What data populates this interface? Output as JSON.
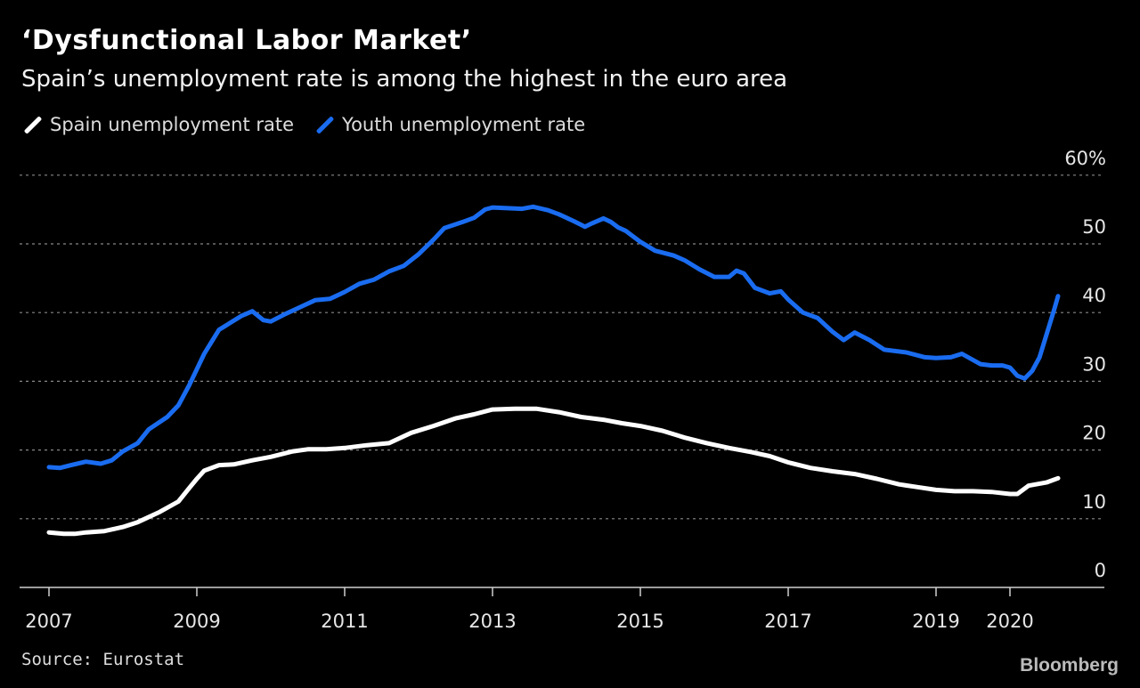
{
  "header": {
    "title": "‘Dysfunctional Labor Market’",
    "subtitle": "Spain’s unemployment rate is among the highest in the euro area"
  },
  "footer": {
    "source": "Source: Eurostat",
    "brand": "Bloomberg"
  },
  "chart_data": {
    "type": "line",
    "title": "‘Dysfunctional Labor Market’",
    "subtitle": "Spain’s unemployment rate is among the highest in the euro area",
    "xlabel": "",
    "ylabel": "",
    "ylim": [
      0,
      60
    ],
    "xlim": [
      2007,
      2021
    ],
    "y_ticks": [
      "0",
      "10",
      "20",
      "30",
      "40",
      "50",
      "60%"
    ],
    "y_tick_values": [
      0,
      10,
      20,
      30,
      40,
      50,
      60
    ],
    "x_ticks": [
      "2007",
      "2009",
      "2011",
      "2013",
      "2015",
      "2017",
      "2019",
      "2020"
    ],
    "x_tick_values": [
      2007,
      2009,
      2011,
      2013,
      2015,
      2017,
      2019,
      2020
    ],
    "grid": true,
    "legend_position": "top-left",
    "colors": {
      "background": "#000000",
      "grid": "#888888",
      "spain": "#ffffff",
      "youth": "#1a6cf0"
    },
    "series": [
      {
        "name": "Spain unemployment rate",
        "color": "#ffffff",
        "x": [
          2007.0,
          2007.2,
          2007.35,
          2007.5,
          2007.75,
          2008.0,
          2008.2,
          2008.5,
          2008.75,
          2008.9,
          2009.0,
          2009.1,
          2009.3,
          2009.5,
          2009.75,
          2010.0,
          2010.3,
          2010.5,
          2010.75,
          2011.0,
          2011.3,
          2011.6,
          2011.9,
          2012.2,
          2012.5,
          2012.75,
          2013.0,
          2013.3,
          2013.6,
          2013.9,
          2014.2,
          2014.5,
          2014.75,
          2015.0,
          2015.3,
          2015.6,
          2015.9,
          2016.2,
          2016.5,
          2016.75,
          2017.0,
          2017.3,
          2017.6,
          2017.9,
          2018.2,
          2018.5,
          2018.75,
          2019.0,
          2019.25,
          2019.5,
          2019.75,
          2020.0,
          2020.1,
          2020.25,
          2020.5,
          2020.65
        ],
        "y": [
          8.0,
          7.8,
          7.8,
          8.0,
          8.2,
          8.8,
          9.5,
          11.0,
          12.5,
          14.5,
          15.8,
          17.0,
          17.8,
          17.9,
          18.5,
          19.0,
          19.8,
          20.1,
          20.1,
          20.3,
          20.7,
          21.0,
          22.5,
          23.5,
          24.6,
          25.2,
          25.9,
          26.0,
          26.0,
          25.5,
          24.8,
          24.4,
          23.9,
          23.5,
          22.8,
          21.8,
          21.0,
          20.3,
          19.7,
          19.1,
          18.2,
          17.4,
          16.9,
          16.5,
          15.8,
          15.0,
          14.6,
          14.2,
          14.0,
          14.0,
          13.9,
          13.6,
          13.6,
          14.8,
          15.3,
          15.9
        ]
      },
      {
        "name": "Youth unemployment rate",
        "color": "#1a6cf0",
        "x": [
          2007.0,
          2007.15,
          2007.3,
          2007.5,
          2007.7,
          2007.85,
          2008.0,
          2008.2,
          2008.35,
          2008.6,
          2008.75,
          2008.9,
          2009.1,
          2009.3,
          2009.45,
          2009.6,
          2009.75,
          2009.9,
          2010.0,
          2010.2,
          2010.4,
          2010.6,
          2010.8,
          2011.0,
          2011.2,
          2011.4,
          2011.6,
          2011.8,
          2012.0,
          2012.2,
          2012.35,
          2012.6,
          2012.75,
          2012.9,
          2013.0,
          2013.2,
          2013.4,
          2013.55,
          2013.75,
          2013.9,
          2014.1,
          2014.25,
          2014.35,
          2014.5,
          2014.6,
          2014.7,
          2014.8,
          2015.0,
          2015.2,
          2015.45,
          2015.6,
          2015.8,
          2016.0,
          2016.2,
          2016.3,
          2016.4,
          2016.55,
          2016.75,
          2016.9,
          2017.0,
          2017.2,
          2017.4,
          2017.6,
          2017.75,
          2017.9,
          2018.1,
          2018.3,
          2018.6,
          2018.85,
          2019.0,
          2019.2,
          2019.35,
          2019.6,
          2019.75,
          2019.9,
          2020.0,
          2020.1,
          2020.2,
          2020.3,
          2020.4,
          2020.5,
          2020.6,
          2020.65
        ],
        "y": [
          17.5,
          17.4,
          17.8,
          18.3,
          18.0,
          18.5,
          19.8,
          21.0,
          23.0,
          24.8,
          26.5,
          29.5,
          34.0,
          37.5,
          38.5,
          39.5,
          40.2,
          38.9,
          38.7,
          39.8,
          40.8,
          41.8,
          42.0,
          43.0,
          44.2,
          44.8,
          46.0,
          46.8,
          48.5,
          50.6,
          52.3,
          53.2,
          53.8,
          55.0,
          55.3,
          55.2,
          55.1,
          55.4,
          54.9,
          54.3,
          53.3,
          52.5,
          53.0,
          53.7,
          53.2,
          52.4,
          51.9,
          50.3,
          49.0,
          48.3,
          47.6,
          46.3,
          45.2,
          45.2,
          46.1,
          45.7,
          43.6,
          42.8,
          43.1,
          41.9,
          40.0,
          39.2,
          37.2,
          36.0,
          37.1,
          36.0,
          34.6,
          34.2,
          33.5,
          33.4,
          33.5,
          34.0,
          32.5,
          32.3,
          32.3,
          32.0,
          30.8,
          30.4,
          31.5,
          33.5,
          37.0,
          40.5,
          42.4
        ]
      }
    ]
  }
}
